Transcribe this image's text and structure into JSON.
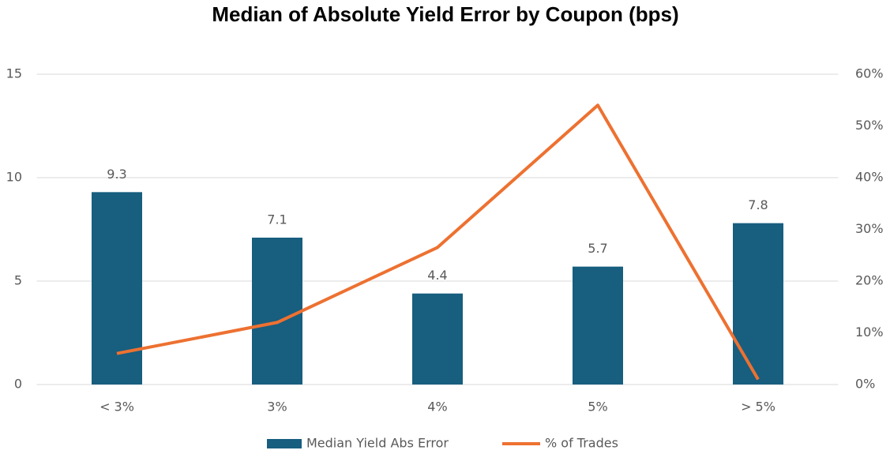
{
  "chart_data": {
    "type": "bar",
    "title": "Median of Absolute Yield Error by Coupon (bps)",
    "categories": [
      "< 3%",
      "3%",
      "4%",
      "5%",
      "> 5%"
    ],
    "series": [
      {
        "name": "Median Yield Abs Error",
        "type": "bar",
        "color": "#175e7f",
        "values": [
          9.3,
          7.1,
          4.4,
          5.7,
          7.8
        ]
      },
      {
        "name": "% of Trades",
        "type": "line",
        "axis": "y2",
        "color": "#ed7131",
        "values": [
          6,
          12,
          26.5,
          54,
          1
        ]
      }
    ],
    "ylim": [
      0,
      15
    ],
    "yticks": [
      0,
      5,
      10,
      15
    ],
    "y2lim": [
      0,
      60
    ],
    "y2ticks": [
      {
        "value": 0,
        "label": "0%"
      },
      {
        "value": 10,
        "label": "10%"
      },
      {
        "value": 20,
        "label": "20%"
      },
      {
        "value": 30,
        "label": "30%"
      },
      {
        "value": 40,
        "label": "40%"
      },
      {
        "value": 50,
        "label": "50%"
      },
      {
        "value": 60,
        "label": "60%"
      }
    ],
    "grid": true,
    "legend": "bottom"
  }
}
